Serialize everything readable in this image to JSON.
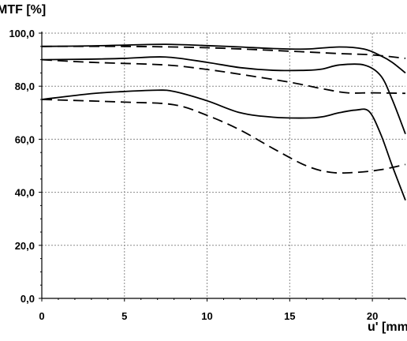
{
  "chart_data": {
    "type": "line",
    "xlabel": "u' [mm]",
    "ylabel": "MTF [%]",
    "xlim": [
      0,
      22
    ],
    "ylim": [
      0,
      100
    ],
    "x_ticks": [
      "0",
      "5",
      "10",
      "15",
      "20"
    ],
    "x_tick_values": [
      0,
      5,
      10,
      15,
      20
    ],
    "y_ticks": [
      "0,0",
      "20,0",
      "40,0",
      "60,0",
      "80,0",
      "100,0"
    ],
    "y_tick_values": [
      0,
      20,
      40,
      60,
      80,
      100
    ],
    "grid": true,
    "series": [
      {
        "style": "solid",
        "color": "#000000",
        "x": [
          0,
          3,
          5,
          7.5,
          10,
          12,
          14,
          16,
          18,
          19.5,
          20.5,
          21.2,
          22
        ],
        "y": [
          95,
          95.2,
          95.5,
          95.8,
          95.3,
          94.8,
          94.2,
          94.0,
          94.8,
          94.0,
          91.5,
          89.0,
          85.0
        ]
      },
      {
        "style": "dashed",
        "color": "#000000",
        "x": [
          0,
          5,
          10,
          15,
          18,
          20,
          22
        ],
        "y": [
          95,
          95.0,
          94.5,
          93.2,
          92.3,
          91.8,
          90.5
        ]
      },
      {
        "style": "solid",
        "color": "#000000",
        "x": [
          0,
          3,
          5,
          7.5,
          10,
          12,
          14,
          16,
          17,
          18,
          19.5,
          20.5,
          21.2,
          22
        ],
        "y": [
          90,
          90.2,
          90.5,
          91.0,
          89.0,
          87.0,
          86.0,
          86.0,
          86.5,
          88.0,
          88.0,
          84.0,
          75.0,
          62.0
        ]
      },
      {
        "style": "dashed",
        "color": "#000000",
        "x": [
          0,
          3,
          7.5,
          10,
          12,
          15,
          17,
          18.5,
          20,
          22
        ],
        "y": [
          90,
          89.0,
          88.0,
          86.3,
          84.5,
          81.5,
          79.0,
          77.5,
          77.5,
          77.3
        ]
      },
      {
        "style": "solid",
        "color": "#000000",
        "x": [
          0,
          3,
          5,
          7,
          8,
          10,
          12,
          14,
          16,
          17,
          18,
          19,
          19.8,
          20.5,
          21.2,
          22
        ],
        "y": [
          75,
          77.2,
          78.0,
          78.5,
          78.0,
          74.5,
          70.0,
          68.3,
          68.0,
          68.5,
          70.0,
          71.0,
          70.5,
          62.0,
          50.0,
          37.0
        ]
      },
      {
        "style": "dashed",
        "color": "#000000",
        "x": [
          0,
          5,
          8,
          10,
          12,
          14,
          16,
          17.5,
          19,
          20.5,
          22
        ],
        "y": [
          75,
          74.0,
          73.0,
          69.0,
          63.5,
          56.5,
          50.0,
          47.5,
          47.5,
          48.5,
          50.5
        ]
      }
    ]
  }
}
